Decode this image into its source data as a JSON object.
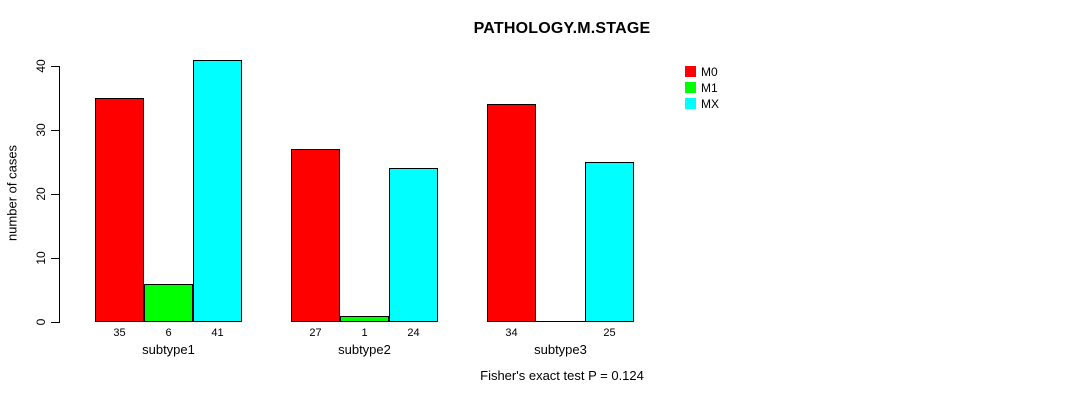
{
  "chart_data": {
    "type": "bar",
    "title": "PATHOLOGY.M.STAGE",
    "ylabel": "number of cases",
    "xlabel": "",
    "footnote": "Fisher's exact test P = 0.124",
    "categories": [
      "subtype1",
      "subtype2",
      "subtype3"
    ],
    "series": [
      {
        "name": "M0",
        "color": "#FF0000",
        "values": [
          35,
          27,
          34
        ]
      },
      {
        "name": "M1",
        "color": "#00FF00",
        "values": [
          6,
          1,
          0
        ]
      },
      {
        "name": "MX",
        "color": "#00FFFF",
        "values": [
          41,
          24,
          25
        ]
      }
    ],
    "bar_value_labels": [
      [
        "35",
        "6",
        "41"
      ],
      [
        "27",
        "1",
        "24"
      ],
      [
        "34",
        "",
        "25"
      ]
    ],
    "ylim": [
      0,
      40
    ],
    "yticks": [
      "0",
      "10",
      "20",
      "30",
      "40"
    ],
    "grid": false,
    "legend_position": "top-right",
    "axis_color": "#000000",
    "background_color": "#FFFFFF"
  }
}
